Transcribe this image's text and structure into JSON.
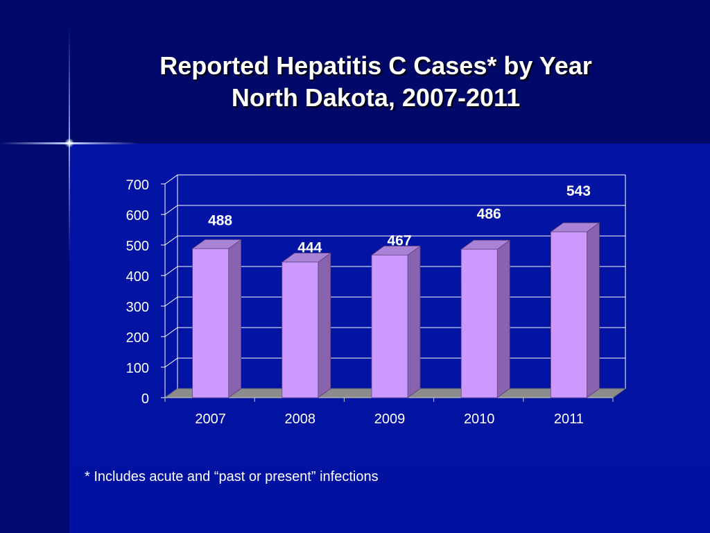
{
  "title_line1": "Reported Hepatitis C Cases* by Year",
  "title_line2": "North Dakota, 2007-2011",
  "footnote": "* Includes acute and “past or present” infections",
  "colors": {
    "bar_front": "#cc99ff",
    "bar_side": "#8a63b0",
    "bar_top": "#a883d6",
    "floor": "#8c8c8c",
    "gridline": "#ffffff",
    "background": "#0314a4"
  },
  "chart_data": {
    "type": "bar",
    "categories": [
      "2007",
      "2008",
      "2009",
      "2010",
      "2011"
    ],
    "values": [
      488,
      444,
      467,
      486,
      543
    ],
    "ylim": [
      0,
      700
    ],
    "yticks": [
      "0",
      "100",
      "200",
      "300",
      "400",
      "500",
      "600",
      "700"
    ],
    "grid": true,
    "legend": "none"
  }
}
